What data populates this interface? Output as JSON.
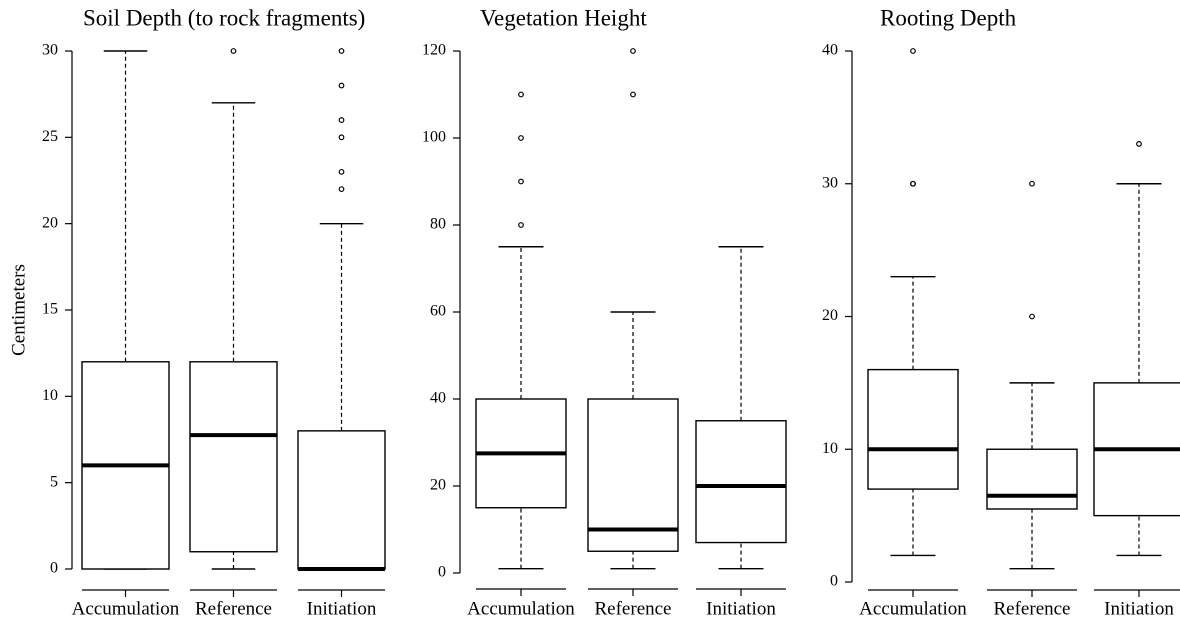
{
  "chart_data": [
    {
      "type": "box",
      "title": "Soil Depth (to rock fragments)",
      "y_label": "Centimeters",
      "categories": [
        "Accumulation",
        "Reference",
        "Initiation"
      ],
      "boxes": [
        {
          "min": 0,
          "q1": 0,
          "median": 6,
          "q3": 12,
          "max": 30,
          "outliers": []
        },
        {
          "min": 0,
          "q1": 1,
          "median": 7.75,
          "q3": 12,
          "max": 27,
          "outliers": [
            30
          ]
        },
        {
          "min": 0,
          "q1": 0,
          "median": 0,
          "q3": 8,
          "max": 20,
          "outliers": [
            22,
            23,
            25,
            26,
            28,
            30
          ]
        }
      ],
      "ylim": [
        0,
        30
      ],
      "yticks": [
        0,
        5,
        10,
        15,
        20,
        25,
        30
      ]
    },
    {
      "type": "box",
      "title": "Vegetation Height",
      "categories": [
        "Accumulation",
        "Reference",
        "Initiation"
      ],
      "boxes": [
        {
          "min": 1,
          "q1": 15,
          "median": 27.5,
          "q3": 40,
          "max": 75,
          "outliers": [
            80,
            90,
            100,
            110
          ]
        },
        {
          "min": 1,
          "q1": 5,
          "median": 10,
          "q3": 40,
          "max": 60,
          "outliers": [
            110,
            120
          ]
        },
        {
          "min": 1,
          "q1": 7,
          "median": 20,
          "q3": 35,
          "max": 75,
          "outliers": []
        }
      ],
      "ylim": [
        0,
        120
      ],
      "yticks": [
        0,
        20,
        40,
        60,
        80,
        100,
        120
      ]
    },
    {
      "type": "box",
      "title": "Rooting Depth",
      "categories": [
        "Accumulation",
        "Reference",
        "Initiation"
      ],
      "boxes": [
        {
          "min": 2,
          "q1": 7,
          "median": 10,
          "q3": 16,
          "max": 23,
          "outliers": [
            30,
            30,
            40
          ]
        },
        {
          "min": 1,
          "q1": 5.5,
          "median": 6.5,
          "q3": 10,
          "max": 15,
          "outliers": [
            20,
            30
          ]
        },
        {
          "min": 2,
          "q1": 5,
          "median": 10,
          "q3": 15,
          "max": 30,
          "outliers": [
            33
          ]
        }
      ],
      "ylim": [
        0,
        40
      ],
      "yticks": [
        0,
        10,
        20,
        30,
        40
      ]
    }
  ]
}
